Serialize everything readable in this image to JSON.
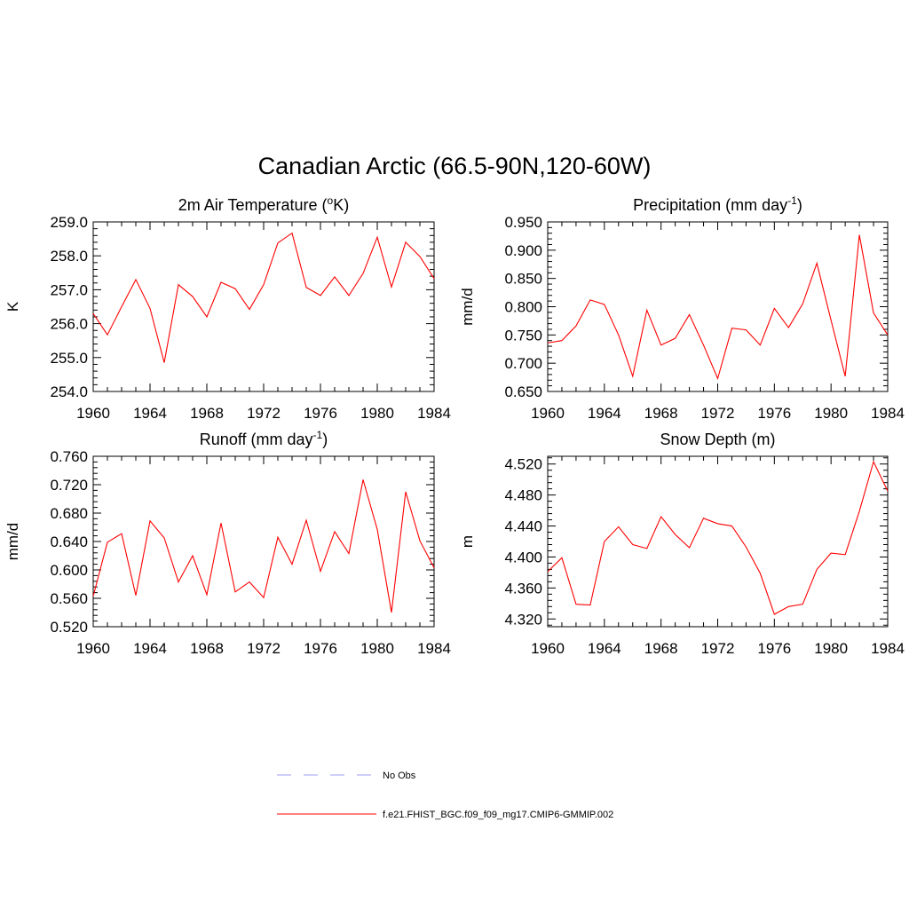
{
  "title": "Canadian Arctic (66.5-90N,120-60W)",
  "chart_data": [
    {
      "type": "line",
      "title_main": "2m Air Temperature (",
      "title_sup_pre": "o",
      "title_after": "K)",
      "ylabel": "K",
      "xlim": [
        1960,
        1984
      ],
      "ylim": [
        254.0,
        259.0
      ],
      "xticks": [
        "1960",
        "1964",
        "1968",
        "1972",
        "1976",
        "1980",
        "1984"
      ],
      "yticks": [
        "254.0",
        "255.0",
        "256.0",
        "257.0",
        "258.0",
        "259.0"
      ],
      "x": [
        1960,
        1961,
        1962,
        1963,
        1964,
        1965,
        1966,
        1967,
        1968,
        1969,
        1970,
        1971,
        1972,
        1973,
        1974,
        1975,
        1976,
        1977,
        1978,
        1979,
        1980,
        1981,
        1982,
        1983,
        1984
      ],
      "series": [
        {
          "name": "f.e21.FHIST_BGC.f09_f09_mg17.CMIP6-GMMIP.002",
          "values": [
            256.3,
            255.67,
            256.5,
            257.3,
            256.45,
            254.85,
            257.15,
            256.8,
            256.2,
            257.22,
            257.03,
            256.42,
            257.15,
            258.38,
            258.67,
            257.07,
            256.83,
            257.38,
            256.83,
            257.48,
            258.55,
            257.08,
            258.4,
            257.98,
            257.33
          ]
        }
      ]
    },
    {
      "type": "line",
      "title_main": "Precipitation (mm day",
      "title_sup": "-1",
      "title_after": ")",
      "ylabel": "mm/d",
      "xlim": [
        1960,
        1984
      ],
      "ylim": [
        0.65,
        0.95
      ],
      "xticks": [
        "1960",
        "1964",
        "1968",
        "1972",
        "1976",
        "1980",
        "1984"
      ],
      "yticks": [
        "0.650",
        "0.700",
        "0.750",
        "0.800",
        "0.850",
        "0.900",
        "0.950"
      ],
      "x": [
        1960,
        1961,
        1962,
        1963,
        1964,
        1965,
        1966,
        1967,
        1968,
        1969,
        1970,
        1971,
        1972,
        1973,
        1974,
        1975,
        1976,
        1977,
        1978,
        1979,
        1980,
        1981,
        1982,
        1983,
        1984
      ],
      "series": [
        {
          "name": "f.e21.FHIST_BGC.f09_f09_mg17.CMIP6-GMMIP.002",
          "values": [
            0.736,
            0.74,
            0.766,
            0.812,
            0.804,
            0.75,
            0.677,
            0.794,
            0.732,
            0.744,
            0.786,
            0.732,
            0.673,
            0.762,
            0.759,
            0.732,
            0.797,
            0.763,
            0.805,
            0.877,
            0.776,
            0.677,
            0.927,
            0.789,
            0.75
          ]
        }
      ]
    },
    {
      "type": "line",
      "title_main": "Runoff (mm day",
      "title_sup": "-1",
      "title_after": ")",
      "ylabel": "mm/d",
      "xlim": [
        1960,
        1984
      ],
      "ylim": [
        0.52,
        0.76
      ],
      "xticks": [
        "1960",
        "1964",
        "1968",
        "1972",
        "1976",
        "1980",
        "1984"
      ],
      "yticks": [
        "0.520",
        "0.560",
        "0.600",
        "0.640",
        "0.680",
        "0.720",
        "0.760"
      ],
      "x": [
        1960,
        1961,
        1962,
        1963,
        1964,
        1965,
        1966,
        1967,
        1968,
        1969,
        1970,
        1971,
        1972,
        1973,
        1974,
        1975,
        1976,
        1977,
        1978,
        1979,
        1980,
        1981,
        1982,
        1983,
        1984
      ],
      "series": [
        {
          "name": "f.e21.FHIST_BGC.f09_f09_mg17.CMIP6-GMMIP.002",
          "values": [
            0.563,
            0.639,
            0.651,
            0.564,
            0.669,
            0.645,
            0.583,
            0.62,
            0.565,
            0.666,
            0.569,
            0.583,
            0.561,
            0.646,
            0.608,
            0.67,
            0.598,
            0.654,
            0.623,
            0.727,
            0.657,
            0.54,
            0.71,
            0.641,
            0.603
          ]
        }
      ]
    },
    {
      "type": "line",
      "title_main": "Snow Depth (m)",
      "ylabel": "m",
      "xlim": [
        1960,
        1984
      ],
      "ylim": [
        4.31,
        4.53
      ],
      "xticks": [
        "1960",
        "1964",
        "1968",
        "1972",
        "1976",
        "1980",
        "1984"
      ],
      "yticks": [
        "4.320",
        "4.360",
        "4.400",
        "4.440",
        "4.480",
        "4.520"
      ],
      "x": [
        1960,
        1961,
        1962,
        1963,
        1964,
        1965,
        1966,
        1967,
        1968,
        1969,
        1970,
        1971,
        1972,
        1973,
        1974,
        1975,
        1976,
        1977,
        1978,
        1979,
        1980,
        1981,
        1982,
        1983,
        1984
      ],
      "series": [
        {
          "name": "f.e21.FHIST_BGC.f09_f09_mg17.CMIP6-GMMIP.002",
          "values": [
            4.381,
            4.399,
            4.339,
            4.338,
            4.42,
            4.439,
            4.416,
            4.411,
            4.452,
            4.429,
            4.412,
            4.45,
            4.443,
            4.44,
            4.413,
            4.379,
            4.326,
            4.336,
            4.339,
            4.384,
            4.405,
            4.403,
            4.459,
            4.523,
            4.485
          ]
        }
      ]
    }
  ],
  "legend": [
    {
      "label": "No Obs",
      "color": "#9f9ff5",
      "style": "dashed"
    },
    {
      "label": "f.e21.FHIST_BGC.f09_f09_mg17.CMIP6-GMMIP.002",
      "color": "#ff0000",
      "style": "solid"
    }
  ],
  "line_color": "#ff0000"
}
